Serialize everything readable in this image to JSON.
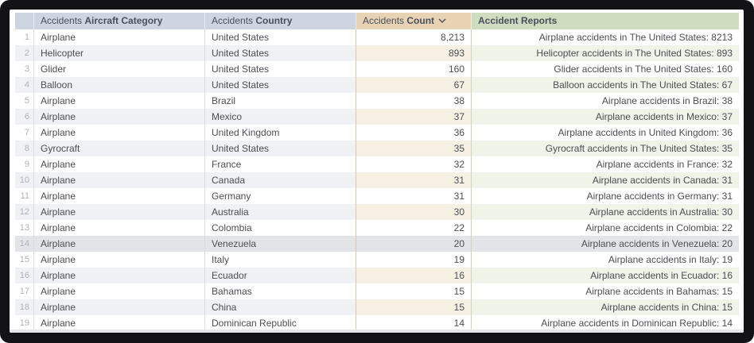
{
  "colors": {
    "frame": "#131316",
    "header_blue": "#ccd5e0",
    "header_tan": "#e7d2b3",
    "header_green": "#cedcc0",
    "header_text": "#47505b",
    "text": "#4b4e53",
    "text_muted": "#adb3bb",
    "tint_blue": "#eff1f5",
    "tint_tan": "#f7f1e4",
    "tint_green": "#eff3e8",
    "selected": "#e3e4e8",
    "border_gray": "#d9dce0",
    "border_tan": "#d8c8a6",
    "border_green": "#c8d6b7",
    "scrollbar": "#e7e7e7"
  },
  "table": {
    "header": {
      "index": {
        "label": ""
      },
      "category": {
        "prefix": "Accidents",
        "label": "Aircraft Category"
      },
      "country": {
        "prefix": "Accidents",
        "label": "Country"
      },
      "count": {
        "prefix": "Accidents",
        "label": "Count",
        "sort": "descending"
      },
      "reports": {
        "label": "Accident Reports"
      }
    },
    "selected_row_number": 14,
    "rows": [
      {
        "num": 1,
        "category": "Airplane",
        "country": "United States",
        "count": "8,213",
        "report": "Airplane accidents in The United States: 8213"
      },
      {
        "num": 2,
        "category": "Helicopter",
        "country": "United States",
        "count": "893",
        "report": "Helicopter accidents in The United States: 893"
      },
      {
        "num": 3,
        "category": "Glider",
        "country": "United States",
        "count": "160",
        "report": "Glider accidents in The United States: 160"
      },
      {
        "num": 4,
        "category": "Balloon",
        "country": "United States",
        "count": "67",
        "report": "Balloon accidents in The United States: 67"
      },
      {
        "num": 5,
        "category": "Airplane",
        "country": "Brazil",
        "count": "38",
        "report": "Airplane accidents in Brazil: 38"
      },
      {
        "num": 6,
        "category": "Airplane",
        "country": "Mexico",
        "count": "37",
        "report": "Airplane accidents in Mexico: 37"
      },
      {
        "num": 7,
        "category": "Airplane",
        "country": "United Kingdom",
        "count": "36",
        "report": "Airplane accidents in United Kingdom: 36"
      },
      {
        "num": 8,
        "category": "Gyrocraft",
        "country": "United States",
        "count": "35",
        "report": "Gyrocraft accidents in The United States: 35"
      },
      {
        "num": 9,
        "category": "Airplane",
        "country": "France",
        "count": "32",
        "report": "Airplane accidents in France: 32"
      },
      {
        "num": 10,
        "category": "Airplane",
        "country": "Canada",
        "count": "31",
        "report": "Airplane accidents in Canada: 31"
      },
      {
        "num": 11,
        "category": "Airplane",
        "country": "Germany",
        "count": "31",
        "report": "Airplane accidents in Germany: 31"
      },
      {
        "num": 12,
        "category": "Airplane",
        "country": "Australia",
        "count": "30",
        "report": "Airplane accidents in Australia: 30"
      },
      {
        "num": 13,
        "category": "Airplane",
        "country": "Colombia",
        "count": "22",
        "report": "Airplane accidents in Colombia: 22"
      },
      {
        "num": 14,
        "category": "Airplane",
        "country": "Venezuela",
        "count": "20",
        "report": "Airplane accidents in Venezuela: 20"
      },
      {
        "num": 15,
        "category": "Airplane",
        "country": "Italy",
        "count": "19",
        "report": "Airplane accidents in Italy: 19"
      },
      {
        "num": 16,
        "category": "Airplane",
        "country": "Ecuador",
        "count": "16",
        "report": "Airplane accidents in Ecuador: 16"
      },
      {
        "num": 17,
        "category": "Airplane",
        "country": "Bahamas",
        "count": "15",
        "report": "Airplane accidents in Bahamas: 15"
      },
      {
        "num": 18,
        "category": "Airplane",
        "country": "China",
        "count": "15",
        "report": "Airplane accidents in China: 15"
      },
      {
        "num": 19,
        "category": "Airplane",
        "country": "Dominican Republic",
        "count": "14",
        "report": "Airplane accidents in Dominican Republic: 14"
      }
    ]
  }
}
